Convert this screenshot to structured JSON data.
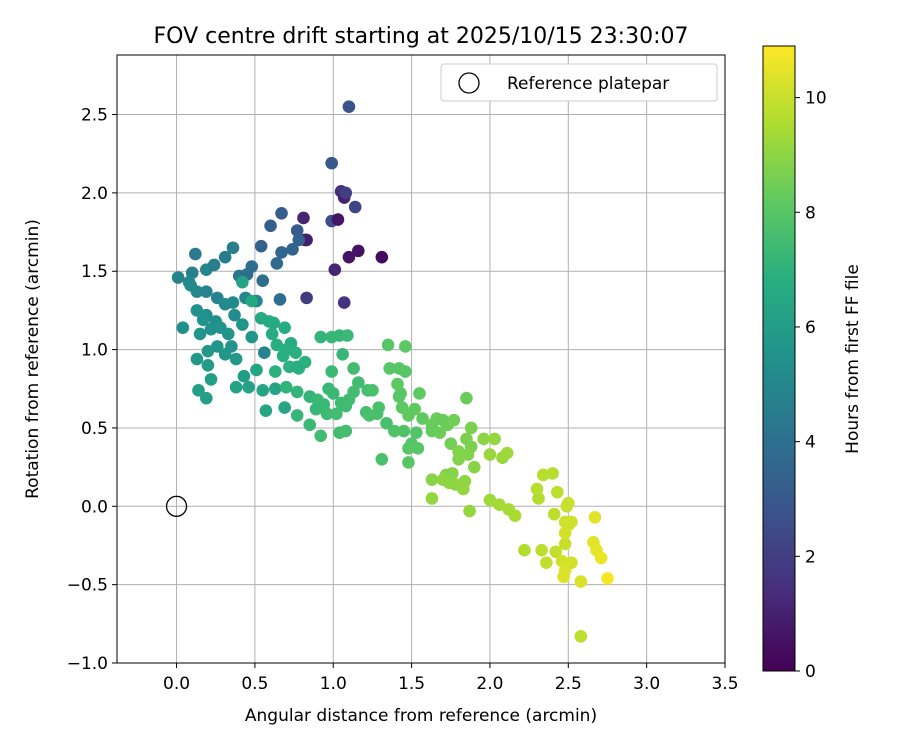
{
  "chart_data": {
    "type": "scatter",
    "title": "FOV centre drift starting at 2025/10/15 23:30:07",
    "xlabel": "Angular distance from reference (arcmin)",
    "ylabel": "Rotation from reference (arcmin)",
    "xlim": [
      -0.38,
      3.5
    ],
    "ylim": [
      -1.0,
      2.88
    ],
    "xticks": [
      "0.0",
      "0.5",
      "1.0",
      "1.5",
      "2.0",
      "2.5",
      "3.0",
      "3.5"
    ],
    "yticks": [
      "−1.0",
      "−0.5",
      "0.0",
      "0.5",
      "1.0",
      "1.5",
      "2.0",
      "2.5"
    ],
    "grid": true,
    "legend": {
      "placement": "top-right",
      "entries": [
        "Reference platepar"
      ]
    },
    "reference_point": {
      "x": 0.0,
      "y": 0.0
    },
    "colorbar": {
      "label": "Hours from first FF file",
      "range": [
        0,
        10.9
      ],
      "ticks": [
        "0",
        "2",
        "4",
        "6",
        "8",
        "10"
      ],
      "colormap": "viridis"
    },
    "points": [
      [
        1.1,
        2.55,
        2.8
      ],
      [
        0.99,
        2.19,
        3.0
      ],
      [
        1.05,
        2.01,
        1.4
      ],
      [
        1.07,
        1.97,
        1.0
      ],
      [
        1.08,
        2.0,
        2.0
      ],
      [
        1.14,
        1.91,
        2.3
      ],
      [
        0.99,
        1.82,
        2.6
      ],
      [
        1.03,
        1.83,
        0.6
      ],
      [
        0.81,
        1.84,
        1.1
      ],
      [
        0.82,
        1.7,
        0.4
      ],
      [
        0.83,
        1.7,
        0.9
      ],
      [
        1.16,
        1.63,
        0.5
      ],
      [
        1.1,
        1.59,
        0.6
      ],
      [
        1.31,
        1.59,
        0.3
      ],
      [
        1.01,
        1.51,
        1.1
      ],
      [
        1.07,
        1.3,
        1.6
      ],
      [
        0.83,
        1.33,
        1.9
      ],
      [
        0.67,
        1.87,
        3.2
      ],
      [
        0.6,
        1.79,
        3.3
      ],
      [
        0.77,
        1.76,
        3.1
      ],
      [
        0.78,
        1.7,
        3.4
      ],
      [
        0.54,
        1.66,
        3.4
      ],
      [
        0.67,
        1.62,
        3.6
      ],
      [
        0.74,
        1.64,
        3.5
      ],
      [
        0.64,
        1.55,
        3.8
      ],
      [
        0.66,
        1.32,
        3.9
      ],
      [
        0.55,
        1.44,
        3.9
      ],
      [
        0.48,
        1.53,
        3.9
      ],
      [
        0.4,
        1.47,
        4.2
      ],
      [
        0.45,
        1.48,
        4.0
      ],
      [
        0.36,
        1.65,
        4.6
      ],
      [
        0.31,
        1.59,
        4.5
      ],
      [
        0.12,
        1.61,
        4.5
      ],
      [
        0.19,
        1.51,
        4.9
      ],
      [
        0.24,
        1.54,
        4.6
      ],
      [
        0.1,
        1.49,
        4.7
      ],
      [
        0.01,
        1.46,
        4.8
      ],
      [
        0.08,
        1.43,
        5.0
      ],
      [
        0.13,
        1.37,
        5.1
      ],
      [
        0.09,
        1.41,
        5.1
      ],
      [
        0.19,
        1.37,
        4.9
      ],
      [
        0.26,
        1.33,
        4.9
      ],
      [
        0.31,
        1.29,
        5.2
      ],
      [
        0.36,
        1.3,
        5.1
      ],
      [
        0.44,
        1.33,
        5.0
      ],
      [
        0.51,
        1.31,
        4.9
      ],
      [
        0.37,
        1.22,
        5.2
      ],
      [
        0.25,
        1.18,
        5.4
      ],
      [
        0.19,
        1.22,
        5.3
      ],
      [
        0.13,
        1.25,
        5.5
      ],
      [
        0.17,
        1.19,
        5.5
      ],
      [
        0.22,
        1.13,
        5.5
      ],
      [
        0.15,
        1.1,
        5.6
      ],
      [
        0.04,
        1.14,
        5.4
      ],
      [
        0.28,
        1.14,
        5.5
      ],
      [
        0.33,
        1.1,
        5.6
      ],
      [
        0.42,
        1.16,
        5.6
      ],
      [
        0.48,
        1.08,
        5.7
      ],
      [
        0.35,
        1.02,
        5.6
      ],
      [
        0.26,
        1.02,
        5.7
      ],
      [
        0.2,
        0.99,
        5.8
      ],
      [
        0.13,
        0.94,
        5.8
      ],
      [
        0.2,
        0.9,
        5.9
      ],
      [
        0.31,
        0.97,
        5.8
      ],
      [
        0.38,
        0.94,
        5.8
      ],
      [
        0.43,
        0.83,
        6.0
      ],
      [
        0.56,
        0.98,
        4.9
      ],
      [
        0.22,
        0.81,
        6.0
      ],
      [
        0.14,
        0.74,
        6.1
      ],
      [
        0.19,
        0.69,
        6.1
      ],
      [
        0.38,
        0.76,
        6.2
      ],
      [
        0.46,
        0.76,
        6.2
      ],
      [
        0.51,
        0.87,
        6.3
      ],
      [
        0.55,
        0.74,
        6.3
      ],
      [
        0.63,
        0.75,
        6.3
      ],
      [
        0.57,
        0.61,
        6.4
      ],
      [
        0.69,
        0.63,
        6.4
      ],
      [
        0.54,
        1.2,
        6.6
      ],
      [
        0.59,
        1.18,
        6.6
      ],
      [
        0.61,
        1.1,
        6.7
      ],
      [
        0.69,
        1.14,
        6.7
      ],
      [
        0.64,
        1.03,
        6.8
      ],
      [
        0.73,
        1.04,
        6.7
      ],
      [
        0.68,
        0.96,
        6.8
      ],
      [
        0.76,
        0.98,
        6.9
      ],
      [
        0.82,
        0.92,
        6.9
      ],
      [
        0.72,
        0.89,
        6.9
      ],
      [
        0.78,
        0.88,
        7.0
      ],
      [
        0.63,
        0.86,
        6.9
      ],
      [
        0.7,
        0.76,
        7.0
      ],
      [
        0.77,
        0.73,
        7.1
      ],
      [
        0.85,
        0.7,
        7.1
      ],
      [
        0.77,
        0.58,
        7.2
      ],
      [
        0.85,
        0.52,
        7.3
      ],
      [
        0.9,
        0.68,
        7.3
      ],
      [
        0.94,
        0.65,
        7.3
      ],
      [
        0.89,
        0.62,
        7.2
      ],
      [
        0.96,
        0.59,
        7.4
      ],
      [
        0.92,
        0.45,
        7.5
      ],
      [
        0.97,
        0.75,
        7.3
      ],
      [
        1.0,
        0.72,
        7.3
      ],
      [
        1.05,
        0.66,
        7.4
      ],
      [
        1.08,
        0.64,
        7.4
      ],
      [
        1.02,
        0.59,
        7.5
      ],
      [
        1.04,
        0.47,
        7.5
      ],
      [
        1.08,
        0.48,
        7.6
      ],
      [
        1.13,
        0.73,
        7.5
      ],
      [
        1.16,
        0.79,
        7.5
      ],
      [
        1.22,
        0.74,
        7.6
      ],
      [
        1.25,
        0.74,
        7.7
      ],
      [
        1.21,
        0.6,
        7.6
      ],
      [
        1.23,
        0.58,
        7.7
      ],
      [
        1.28,
        0.59,
        7.7
      ],
      [
        1.29,
        0.63,
        7.7
      ],
      [
        1.34,
        0.53,
        7.7
      ],
      [
        1.31,
        0.3,
        7.7
      ],
      [
        1.39,
        0.48,
        7.8
      ],
      [
        1.45,
        0.48,
        7.8
      ],
      [
        1.53,
        0.47,
        7.9
      ],
      [
        1.5,
        0.4,
        7.9
      ],
      [
        1.48,
        0.28,
        8.0
      ],
      [
        1.54,
        0.37,
        8.0
      ],
      [
        1.48,
        0.37,
        8.0
      ],
      [
        1.36,
        0.88,
        8.0
      ],
      [
        1.42,
        0.88,
        8.0
      ],
      [
        1.46,
        0.86,
        8.0
      ],
      [
        1.41,
        0.78,
        8.1
      ],
      [
        1.43,
        0.72,
        8.1
      ],
      [
        1.44,
        0.63,
        8.1
      ],
      [
        1.55,
        0.72,
        8.2
      ],
      [
        1.52,
        0.62,
        8.2
      ],
      [
        1.48,
        0.58,
        8.2
      ],
      [
        1.57,
        0.56,
        8.2
      ],
      [
        1.63,
        0.52,
        8.3
      ],
      [
        1.63,
        0.48,
        8.3
      ],
      [
        1.66,
        0.56,
        8.4
      ],
      [
        1.68,
        0.47,
        8.4
      ],
      [
        1.7,
        0.55,
        8.3
      ],
      [
        1.73,
        0.52,
        8.4
      ],
      [
        1.75,
        0.4,
        8.5
      ],
      [
        1.77,
        0.55,
        8.5
      ],
      [
        1.85,
        0.69,
        8.4
      ],
      [
        1.88,
        0.5,
        8.7
      ],
      [
        1.85,
        0.43,
        8.7
      ],
      [
        1.88,
        0.38,
        8.7
      ],
      [
        1.8,
        0.35,
        8.8
      ],
      [
        1.8,
        0.3,
        8.8
      ],
      [
        1.86,
        0.33,
        8.8
      ],
      [
        1.9,
        0.25,
        8.9
      ],
      [
        1.76,
        0.21,
        8.9
      ],
      [
        1.72,
        0.2,
        8.8
      ],
      [
        1.7,
        0.17,
        9.0
      ],
      [
        1.74,
        0.15,
        9.0
      ],
      [
        1.78,
        0.14,
        9.0
      ],
      [
        1.84,
        0.16,
        9.0
      ],
      [
        1.83,
        0.11,
        9.1
      ],
      [
        1.63,
        0.17,
        8.9
      ],
      [
        1.63,
        0.05,
        9.1
      ],
      [
        1.87,
        -0.03,
        9.1
      ],
      [
        1.96,
        0.43,
        9.0
      ],
      [
        2.03,
        0.43,
        9.1
      ],
      [
        2.0,
        0.33,
        9.2
      ],
      [
        2.08,
        0.31,
        9.2
      ],
      [
        2.11,
        0.34,
        9.3
      ],
      [
        2.0,
        0.04,
        9.3
      ],
      [
        2.06,
        0.01,
        9.4
      ],
      [
        2.12,
        -0.02,
        9.4
      ],
      [
        2.16,
        -0.06,
        9.5
      ],
      [
        2.22,
        -0.28,
        9.6
      ],
      [
        2.31,
        0.05,
        9.6
      ],
      [
        2.3,
        0.11,
        9.7
      ],
      [
        2.34,
        0.2,
        9.7
      ],
      [
        2.4,
        0.21,
        9.7
      ],
      [
        2.43,
        0.09,
        9.8
      ],
      [
        2.41,
        -0.05,
        9.8
      ],
      [
        2.33,
        -0.28,
        9.8
      ],
      [
        2.36,
        -0.36,
        9.9
      ],
      [
        2.42,
        -0.29,
        9.9
      ],
      [
        2.48,
        -0.24,
        10.0
      ],
      [
        2.49,
        0.0,
        10.0
      ],
      [
        2.5,
        0.02,
        10.0
      ],
      [
        2.48,
        -0.1,
        10.1
      ],
      [
        2.5,
        -0.12,
        10.1
      ],
      [
        2.52,
        -0.1,
        10.1
      ],
      [
        2.48,
        -0.17,
        10.2
      ],
      [
        2.46,
        -0.35,
        10.2
      ],
      [
        2.48,
        -0.41,
        10.3
      ],
      [
        2.52,
        -0.36,
        10.2
      ],
      [
        2.47,
        -0.45,
        10.3
      ],
      [
        2.58,
        -0.48,
        10.3
      ],
      [
        2.67,
        -0.07,
        10.4
      ],
      [
        2.66,
        -0.23,
        10.4
      ],
      [
        2.68,
        -0.28,
        10.5
      ],
      [
        2.71,
        -0.33,
        10.6
      ],
      [
        2.75,
        -0.46,
        10.8
      ],
      [
        2.58,
        -0.83,
        9.8
      ],
      [
        1.42,
        0.7,
        8.0
      ],
      [
        1.35,
        1.03,
        8.0
      ],
      [
        1.46,
        1.02,
        8.1
      ],
      [
        1.13,
        0.88,
        7.5
      ],
      [
        1.04,
        1.09,
        7.2
      ],
      [
        1.09,
        1.09,
        7.3
      ],
      [
        0.99,
        1.08,
        7.2
      ],
      [
        1.06,
        0.97,
        7.2
      ],
      [
        0.99,
        0.86,
        7.3
      ],
      [
        0.92,
        1.08,
        7.1
      ],
      [
        1.1,
        0.68,
        7.5
      ],
      [
        0.77,
        0.89,
        6.8
      ],
      [
        0.42,
        1.43,
        6.3
      ],
      [
        0.48,
        1.31,
        6.5
      ],
      [
        0.62,
        1.17,
        6.6
      ],
      [
        0.7,
        1.0,
        6.8
      ]
    ]
  }
}
